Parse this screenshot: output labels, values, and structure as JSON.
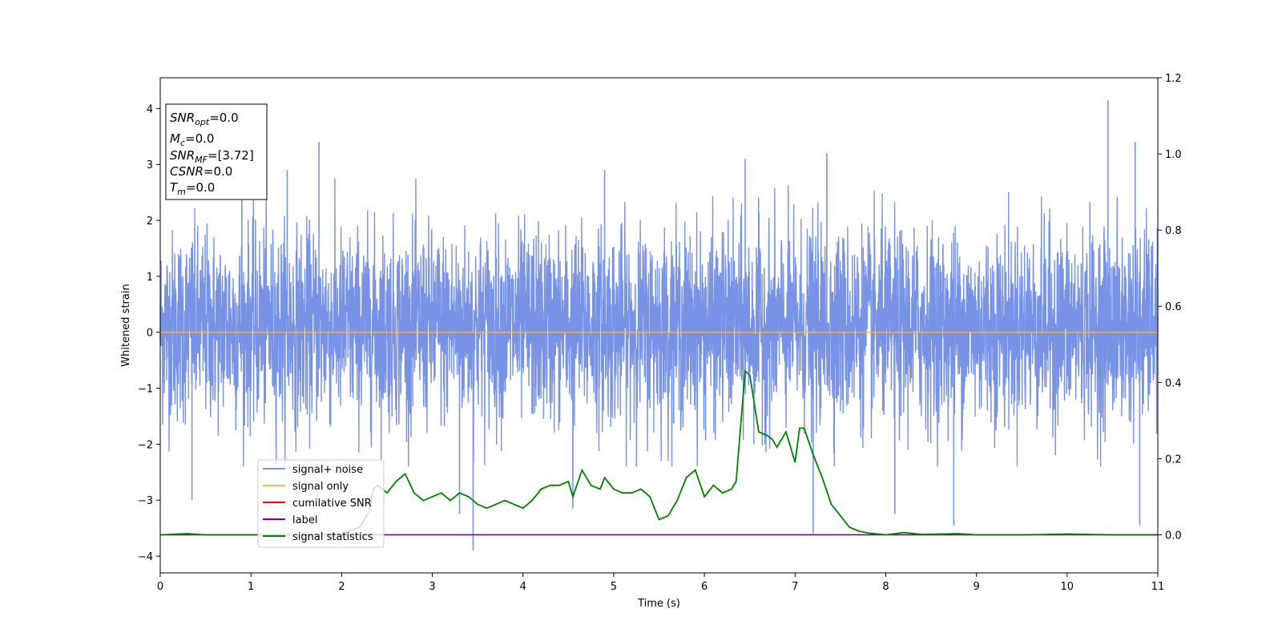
{
  "chart_data": {
    "type": "line",
    "xlabel": "Time (s)",
    "ylabel": "Whitened strain",
    "xlim": [
      0,
      11
    ],
    "ylim": [
      -4.3,
      4.55
    ],
    "y2lim": [
      -0.1,
      1.2
    ],
    "xticks": [
      0,
      1,
      2,
      3,
      4,
      5,
      6,
      7,
      8,
      9,
      10,
      11
    ],
    "yticks": [
      -4,
      -3,
      -2,
      -1,
      0,
      1,
      2,
      3,
      4
    ],
    "y2ticks": [
      0.0,
      0.2,
      0.4,
      0.6,
      0.8,
      1.0,
      1.2
    ],
    "grid": false,
    "legend_position": "lower-left",
    "colors": {
      "signal_noise": "#7893e6",
      "signal_only": "#f5b84f",
      "cumulative_snr": "#ff0000",
      "label": "#800080",
      "signal_statistics": "#008000"
    },
    "series": [
      {
        "name": "signal+ noise",
        "description": "dense whitened noise, roughly within -2.3..2.7 with spikes",
        "spikes": [
          {
            "x": 0.9,
            "y": 2.5
          },
          {
            "x": 1.75,
            "y": 3.4
          },
          {
            "x": 1.4,
            "y": 2.9
          },
          {
            "x": 3.45,
            "y": -3.9
          },
          {
            "x": 3.3,
            "y": -3.25
          },
          {
            "x": 4.55,
            "y": -3.15
          },
          {
            "x": 4.9,
            "y": 2.9
          },
          {
            "x": 6.45,
            "y": 3.1
          },
          {
            "x": 7.2,
            "y": -3.6
          },
          {
            "x": 7.35,
            "y": 3.2
          },
          {
            "x": 8.1,
            "y": -3.25
          },
          {
            "x": 8.75,
            "y": -3.45
          },
          {
            "x": 10.45,
            "y": 4.15
          },
          {
            "x": 10.75,
            "y": 3.4
          },
          {
            "x": 10.8,
            "y": -3.45
          },
          {
            "x": 0.35,
            "y": -3.0
          }
        ]
      },
      {
        "name": "signal only",
        "x": [
          0,
          11
        ],
        "y": [
          0,
          0
        ]
      },
      {
        "name": "cumilative SNR",
        "x": [],
        "y": []
      },
      {
        "name": "label",
        "axis": "right",
        "x": [
          0,
          11
        ],
        "y": [
          0,
          0
        ]
      },
      {
        "name": "signal statistics",
        "axis": "right",
        "x": [
          0,
          0.3,
          0.5,
          1.0,
          1.5,
          2.0,
          2.2,
          2.3,
          2.35,
          2.4,
          2.5,
          2.6,
          2.7,
          2.8,
          2.9,
          3.0,
          3.1,
          3.2,
          3.3,
          3.4,
          3.5,
          3.6,
          3.7,
          3.8,
          3.9,
          4.0,
          4.1,
          4.2,
          4.3,
          4.4,
          4.5,
          4.55,
          4.65,
          4.75,
          4.85,
          4.9,
          5.0,
          5.1,
          5.2,
          5.3,
          5.4,
          5.45,
          5.5,
          5.6,
          5.7,
          5.8,
          5.9,
          6.0,
          6.1,
          6.2,
          6.3,
          6.35,
          6.45,
          6.5,
          6.6,
          6.7,
          6.75,
          6.8,
          6.9,
          7.0,
          7.05,
          7.1,
          7.2,
          7.3,
          7.4,
          7.5,
          7.6,
          7.7,
          7.8,
          8.0,
          8.2,
          8.4,
          8.6,
          8.8,
          9.0,
          9.5,
          10.0,
          10.5,
          11.0
        ],
        "y": [
          0.0,
          0.003,
          0.0,
          0.0,
          0.0,
          0.002,
          0.02,
          0.06,
          0.12,
          0.13,
          0.11,
          0.14,
          0.16,
          0.11,
          0.09,
          0.1,
          0.11,
          0.09,
          0.11,
          0.1,
          0.08,
          0.07,
          0.08,
          0.09,
          0.08,
          0.07,
          0.09,
          0.12,
          0.13,
          0.13,
          0.14,
          0.1,
          0.17,
          0.13,
          0.12,
          0.15,
          0.12,
          0.11,
          0.11,
          0.12,
          0.1,
          0.07,
          0.04,
          0.05,
          0.09,
          0.15,
          0.17,
          0.1,
          0.13,
          0.11,
          0.12,
          0.14,
          0.43,
          0.42,
          0.27,
          0.26,
          0.25,
          0.23,
          0.27,
          0.19,
          0.28,
          0.28,
          0.21,
          0.15,
          0.08,
          0.05,
          0.02,
          0.01,
          0.005,
          0.0,
          0.006,
          0.001,
          0.002,
          0.003,
          0.0,
          0.0,
          0.002,
          0.0,
          0.0
        ]
      }
    ],
    "annotation": {
      "lines": [
        {
          "name": "SNR",
          "sub": "opt",
          "value": "=0.0"
        },
        {
          "name": "M",
          "sub": "c",
          "value": "=0.0"
        },
        {
          "name": "SNR",
          "sub": "MF",
          "value": "=[3.72]"
        },
        {
          "name": "CSNR",
          "sub": "",
          "value": "=0.0"
        },
        {
          "name": "T",
          "sub": "m",
          "value": "=0.0"
        }
      ]
    }
  }
}
